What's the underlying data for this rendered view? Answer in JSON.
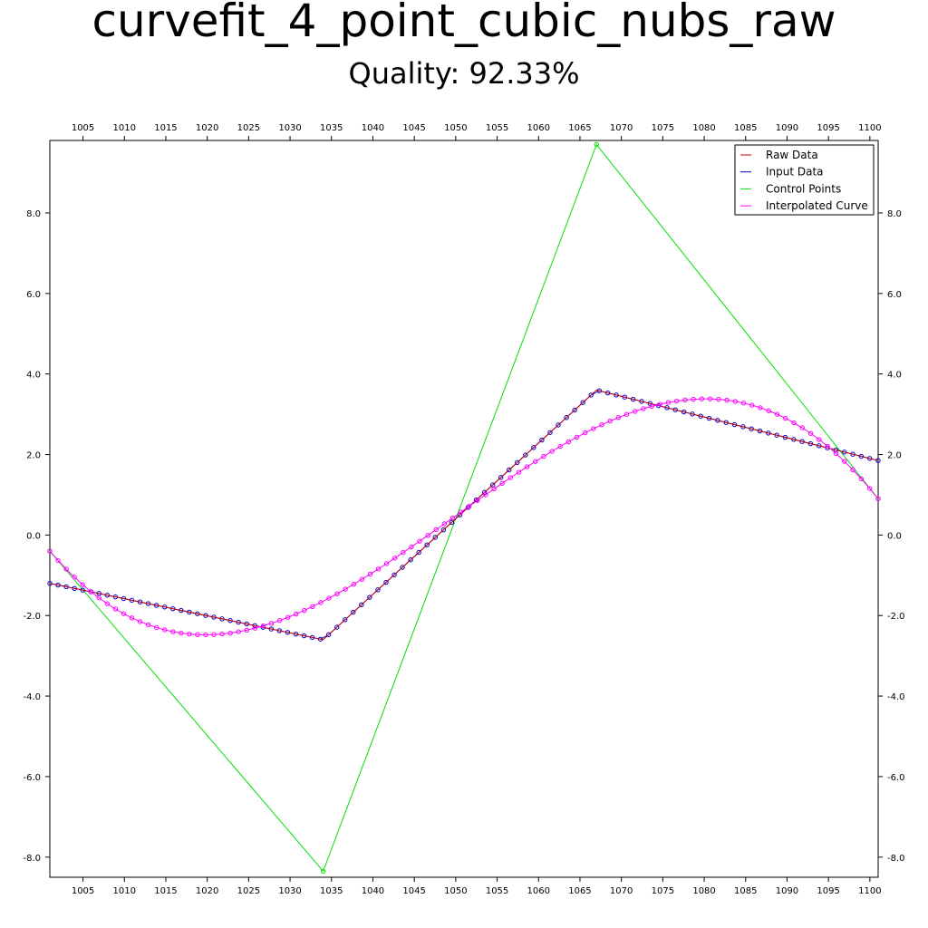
{
  "chart_data": {
    "type": "line",
    "title": "curvefit_4_point_cubic_nubs_raw",
    "subtitle": "Quality: 92.33%",
    "xlabel": "",
    "ylabel": "",
    "xlim": [
      1001,
      1101
    ],
    "ylim": [
      -8.5,
      9.8
    ],
    "x_ticks": [
      1005,
      1010,
      1015,
      1020,
      1025,
      1030,
      1035,
      1040,
      1045,
      1050,
      1055,
      1060,
      1065,
      1070,
      1075,
      1080,
      1085,
      1090,
      1095,
      1100
    ],
    "x_tick_labels": [
      "1005",
      "1010",
      "1015",
      "1020",
      "1025",
      "1030",
      "1035",
      "1040",
      "1045",
      "1050",
      "1055",
      "1060",
      "1065",
      "1070",
      "1075",
      "1080",
      "1085",
      "1090",
      "1095",
      "1100"
    ],
    "y_ticks": [
      8,
      6,
      4,
      2,
      0,
      -2,
      -4,
      -6,
      -8
    ],
    "y_tick_labels": [
      "8.0",
      "6.0",
      "4.0",
      "2.0",
      "0.0",
      "-2.0",
      "-4.0",
      "-6.0",
      "-8.0"
    ],
    "grid": false,
    "legend_position": "top-right",
    "series": [
      {
        "name": "Raw Data",
        "color": "#cc0000",
        "marker": "none",
        "x": [
          1001,
          1034,
          1067,
          1101
        ],
        "y": [
          -1.2,
          -2.6,
          3.6,
          1.85
        ]
      },
      {
        "name": "Input Data",
        "color": "#0000cc",
        "marker": "circle",
        "x": [
          1001,
          1034,
          1067,
          1101
        ],
        "y": [
          -1.2,
          -2.6,
          3.6,
          1.85
        ]
      },
      {
        "name": "Control Points",
        "color": "#00e000",
        "marker": "circle-endpoints",
        "x": [
          1001,
          1034,
          1067,
          1101
        ],
        "y": [
          -0.4,
          -8.35,
          9.7,
          0.9
        ]
      },
      {
        "name": "Interpolated Curve",
        "color": "#ff00ff",
        "marker": "circle",
        "x": [
          1001,
          1034,
          1067,
          1101
        ],
        "y": [
          -0.4,
          -8.35,
          9.7,
          0.9
        ],
        "note_kind": "cubic-bezier"
      }
    ]
  }
}
